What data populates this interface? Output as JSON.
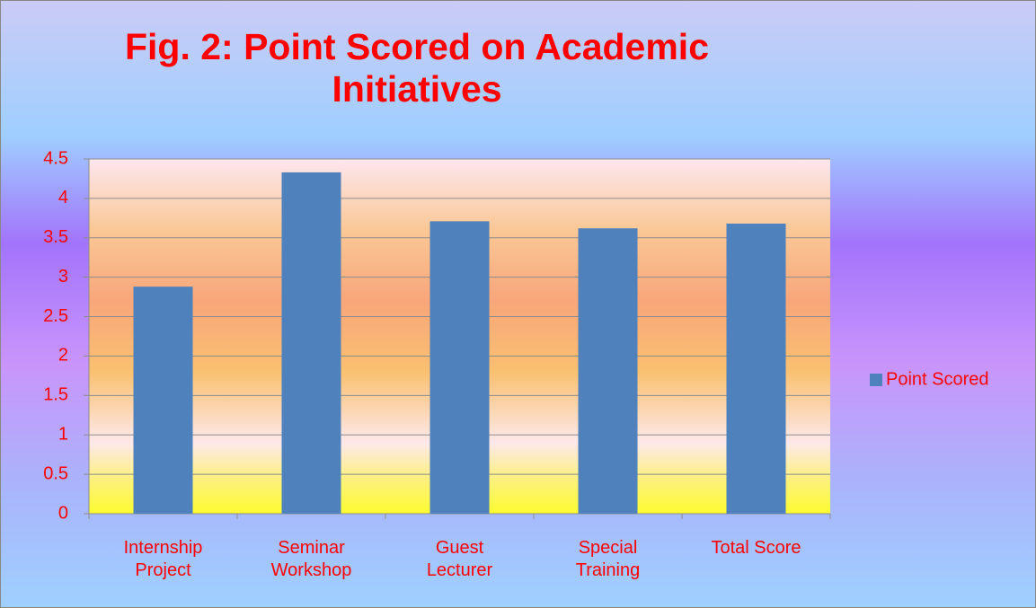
{
  "chart_data": {
    "type": "bar",
    "title": "Fig. 2: Point Scored on Academic Initiatives",
    "categories": [
      "Internship Project",
      "Seminar Workshop",
      "Guest Lecturer",
      "Special Training",
      "Total Score"
    ],
    "series": [
      {
        "name": "Point Scored",
        "color": "#4f81bd",
        "values": [
          2.88,
          4.33,
          3.71,
          3.62,
          3.68
        ]
      }
    ],
    "ylim": [
      0,
      4.5
    ],
    "yticks": [
      0,
      0.5,
      1,
      1.5,
      2,
      2.5,
      3,
      3.5,
      4,
      4.5
    ],
    "grid": true,
    "legend": "right"
  }
}
